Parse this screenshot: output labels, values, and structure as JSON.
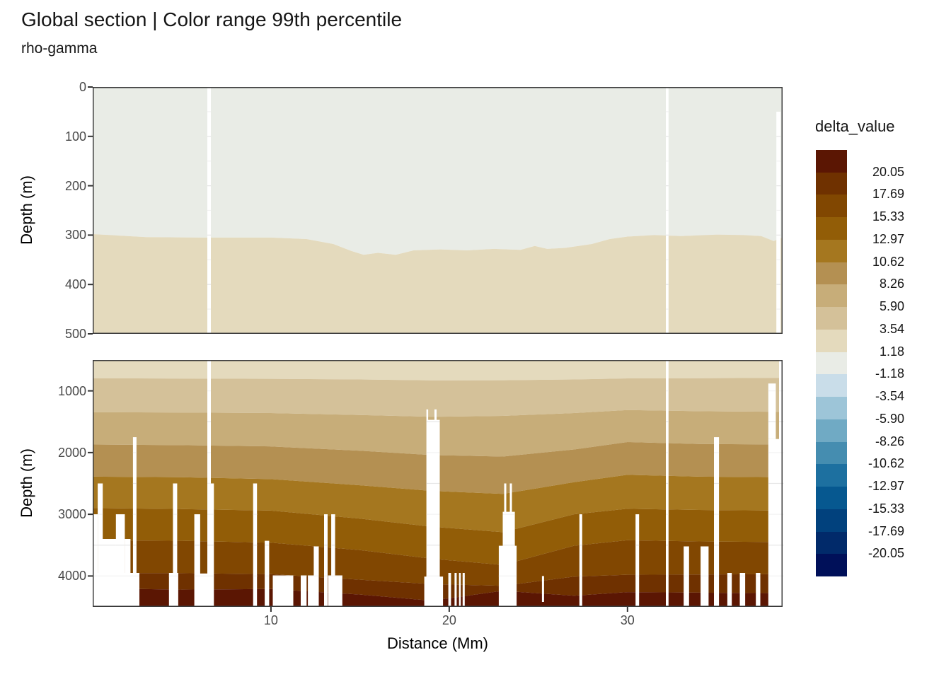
{
  "header": {
    "title": "Global section | Color range 99th percentile",
    "subtitle": "rho-gamma"
  },
  "axes": {
    "x_title": "Distance (Mm)",
    "y_title": "Depth (m)"
  },
  "legend": {
    "title": "delta_value",
    "labels": [
      "20.05",
      "17.69",
      "15.33",
      "12.97",
      "10.62",
      "8.26",
      "5.90",
      "3.54",
      "1.18",
      "-1.18",
      "-3.54",
      "-5.90",
      "-8.26",
      "-10.62",
      "-12.97",
      "-15.33",
      "-17.69",
      "-20.05"
    ]
  },
  "chart_data": {
    "type": "heatmap",
    "title": "Global section | Color range 99th percentile",
    "subtitle": "rho-gamma",
    "xlabel": "Distance (Mm)",
    "ylabel": "Depth (m)",
    "legend_title": "delta_value",
    "legend_breaks": [
      20.05,
      17.69,
      15.33,
      12.97,
      10.62,
      8.26,
      5.9,
      3.54,
      1.18,
      -1.18,
      -3.54,
      -5.9,
      -8.26,
      -10.62,
      -12.97,
      -15.33,
      -17.69,
      -20.05
    ],
    "palette": [
      "#5b1603",
      "#6f3100",
      "#814701",
      "#925d07",
      "#a5771f",
      "#b49052",
      "#c7ad79",
      "#d4c199",
      "#e4dabd",
      "#e9ece6",
      "#c9dde9",
      "#9dc5d8",
      "#70aac4",
      "#458db0",
      "#1d70a0",
      "#065890",
      "#01417d",
      "#012a6a",
      "#001059"
    ],
    "grid_color_major": "#e7e7e7",
    "grid_color_minor": "#f3f3f3",
    "border_color": "#3c3c3c",
    "tick_color": "#333333",
    "x_range": [
      0,
      38.7
    ],
    "x_ticks": [
      10,
      20,
      30
    ],
    "panels": [
      {
        "name": "upper",
        "depth_range": [
          0,
          500
        ],
        "y_ticks": [
          0,
          100,
          200,
          300,
          400,
          500
        ],
        "grid_minor": 50,
        "grid_major": 100,
        "band_colors": [
          9,
          8
        ],
        "boundaries": [
          [
            [
              0,
              298
            ],
            [
              3,
              304
            ],
            [
              6,
              305
            ],
            [
              10,
              305
            ],
            [
              12,
              308
            ],
            [
              13.5,
              318
            ],
            [
              14.5,
              332
            ],
            [
              15.2,
              340
            ],
            [
              16,
              336
            ],
            [
              17,
              340
            ],
            [
              18,
              331
            ],
            [
              19.5,
              329
            ],
            [
              21,
              331
            ],
            [
              22.5,
              328
            ],
            [
              24,
              330
            ],
            [
              24.8,
              322
            ],
            [
              25.5,
              328
            ],
            [
              26.5,
              326
            ],
            [
              28,
              318
            ],
            [
              29,
              308
            ],
            [
              30,
              303
            ],
            [
              31.5,
              300
            ],
            [
              33,
              302
            ],
            [
              35,
              299
            ],
            [
              36.5,
              300
            ],
            [
              37.5,
              302
            ],
            [
              38.2,
              312
            ],
            [
              38.7,
              305
            ]
          ]
        ],
        "stripes": [
          [
            6.43,
            0.2,
            0
          ],
          [
            32.15,
            0.15,
            0
          ],
          [
            38.35,
            0.24,
            50
          ]
        ]
      },
      {
        "name": "lower",
        "depth_range": [
          500,
          4500
        ],
        "y_ticks": [
          1000,
          2000,
          3000,
          4000
        ],
        "grid_minor": 500,
        "grid_major": 1000,
        "band_colors": [
          8,
          7,
          6,
          5,
          4,
          3,
          2,
          1,
          0
        ],
        "boundaries": [
          [
            [
              0,
              795
            ],
            [
              5,
              800
            ],
            [
              10,
              805
            ],
            [
              15,
              815
            ],
            [
              19,
              830
            ],
            [
              23,
              828
            ],
            [
              27,
              815
            ],
            [
              30,
              798
            ],
            [
              34,
              795
            ],
            [
              38.7,
              790
            ]
          ],
          [
            [
              0,
              1345
            ],
            [
              5,
              1350
            ],
            [
              10,
              1360
            ],
            [
              15,
              1390
            ],
            [
              19,
              1420
            ],
            [
              23,
              1405
            ],
            [
              27,
              1360
            ],
            [
              30,
              1310
            ],
            [
              34,
              1330
            ],
            [
              38.7,
              1340
            ]
          ],
          [
            [
              0,
              1870
            ],
            [
              5,
              1880
            ],
            [
              10,
              1900
            ],
            [
              15,
              1970
            ],
            [
              19,
              2040
            ],
            [
              23,
              2065
            ],
            [
              27,
              1950
            ],
            [
              30,
              1830
            ],
            [
              34,
              1860
            ],
            [
              38.7,
              1870
            ]
          ],
          [
            [
              0,
              2390
            ],
            [
              5,
              2400
            ],
            [
              10,
              2430
            ],
            [
              15,
              2530
            ],
            [
              19,
              2620
            ],
            [
              23,
              2670
            ],
            [
              27,
              2480
            ],
            [
              30,
              2360
            ],
            [
              34,
              2390
            ],
            [
              38.7,
              2400
            ]
          ],
          [
            [
              0,
              2900
            ],
            [
              5,
              2915
            ],
            [
              10,
              2940
            ],
            [
              15,
              3070
            ],
            [
              19,
              3200
            ],
            [
              23,
              3290
            ],
            [
              27,
              3000
            ],
            [
              30,
              2910
            ],
            [
              34,
              2930
            ],
            [
              38.7,
              2940
            ]
          ],
          [
            [
              0,
              3420
            ],
            [
              5,
              3430
            ],
            [
              10,
              3460
            ],
            [
              15,
              3580
            ],
            [
              19,
              3720
            ],
            [
              23,
              3820
            ],
            [
              27,
              3510
            ],
            [
              30,
              3420
            ],
            [
              34,
              3440
            ],
            [
              38.7,
              3450
            ]
          ],
          [
            [
              0,
              3950
            ],
            [
              5,
              3955
            ],
            [
              10,
              3970
            ],
            [
              15,
              4060
            ],
            [
              19,
              4130
            ],
            [
              23,
              4160
            ],
            [
              27,
              4010
            ],
            [
              30,
              3980
            ],
            [
              34,
              3975
            ],
            [
              38.7,
              3970
            ]
          ],
          [
            [
              0,
              4200
            ],
            [
              5,
              4220
            ],
            [
              10,
              4210
            ],
            [
              15,
              4300
            ],
            [
              19,
              4400
            ],
            [
              23,
              4240
            ],
            [
              27,
              4320
            ],
            [
              30,
              4260
            ],
            [
              34,
              4270
            ],
            [
              38.7,
              4280
            ]
          ]
        ],
        "stripes": [
          [
            0,
            0.28,
            3000
          ],
          [
            0.28,
            0.28,
            2500
          ],
          [
            0.5,
            0.85,
            3400
          ],
          [
            1.3,
            0.5,
            3000
          ],
          [
            1.8,
            0.32,
            3400
          ],
          [
            2.26,
            0.2,
            1750
          ],
          [
            0,
            2.62,
            3950
          ],
          [
            4.28,
            0.52,
            3950
          ],
          [
            4.5,
            0.24,
            2500
          ],
          [
            5.7,
            0.33,
            3000
          ],
          [
            5.73,
            1.0,
            3960
          ],
          [
            6.43,
            0.2,
            500
          ],
          [
            6.43,
            0.37,
            2500
          ],
          [
            9.0,
            0.22,
            2500
          ],
          [
            9.65,
            0.25,
            3430
          ],
          [
            10.1,
            1.15,
            3990
          ],
          [
            11.67,
            0.33,
            3990
          ],
          [
            12.07,
            0.52,
            3990
          ],
          [
            12.4,
            0.28,
            3520
          ],
          [
            12.98,
            0.2,
            3000
          ],
          [
            13.2,
            0.8,
            3990
          ],
          [
            13.38,
            0.22,
            3000
          ],
          [
            18.72,
            0.1,
            1300
          ],
          [
            19.17,
            0.12,
            1300
          ],
          [
            18.77,
            0.7,
            1470
          ],
          [
            18.6,
            1.05,
            4010
          ],
          [
            19.95,
            0.15,
            3950
          ],
          [
            20.3,
            0.12,
            3950
          ],
          [
            20.55,
            0.1,
            3950
          ],
          [
            20.75,
            0.12,
            3950
          ],
          [
            23.08,
            0.12,
            2500
          ],
          [
            23.4,
            0.12,
            2500
          ],
          [
            23.0,
            0.68,
            2960
          ],
          [
            22.78,
            1.0,
            3510
          ],
          [
            25.2,
            0.12,
            4000,
            4420
          ],
          [
            27.3,
            0.16,
            3000
          ],
          [
            30.45,
            0.2,
            3000
          ],
          [
            32.15,
            0.15,
            500
          ],
          [
            33.15,
            0.3,
            3520
          ],
          [
            34.1,
            0.45,
            3520
          ],
          [
            34.85,
            0.28,
            1750
          ],
          [
            35.6,
            0.25,
            3950
          ],
          [
            36.3,
            0.3,
            3950
          ],
          [
            37.2,
            0.25,
            3950
          ],
          [
            37.9,
            0.42,
            880,
            1780
          ],
          [
            37.9,
            0.85,
            1780
          ],
          [
            38.5,
            0.25,
            500
          ]
        ]
      }
    ]
  }
}
